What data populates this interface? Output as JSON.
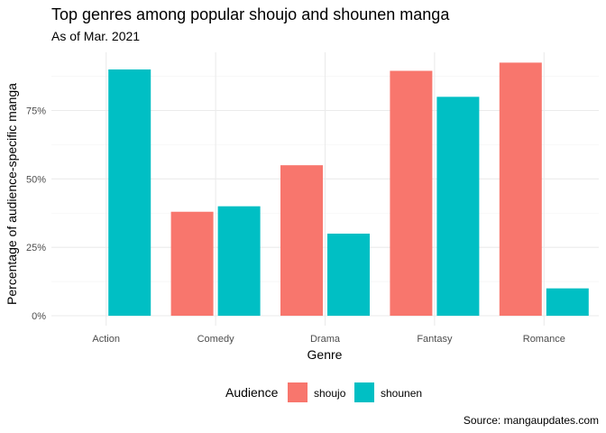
{
  "chart_data": {
    "type": "bar",
    "title": "Top genres among popular shoujo and shounen manga",
    "subtitle": "As of Mar. 2021",
    "xlabel": "Genre",
    "ylabel": "Percentage of audience-specific manga",
    "caption": "Source: mangaupdates.com",
    "categories": [
      "Action",
      "Comedy",
      "Drama",
      "Fantasy",
      "Romance"
    ],
    "series": [
      {
        "name": "shoujo",
        "color": "#F8766D",
        "values": [
          0,
          38,
          55,
          89.5,
          92.5
        ]
      },
      {
        "name": "shounen",
        "color": "#00BFC4",
        "values": [
          90,
          40,
          30,
          80,
          10
        ]
      }
    ],
    "ylim": [
      0,
      96
    ],
    "yticks": [
      0,
      25,
      50,
      75
    ],
    "ytick_labels": [
      "0%",
      "25%",
      "50%",
      "75%"
    ],
    "legend": {
      "title": "Audience",
      "position": "bottom"
    },
    "grid": true
  }
}
